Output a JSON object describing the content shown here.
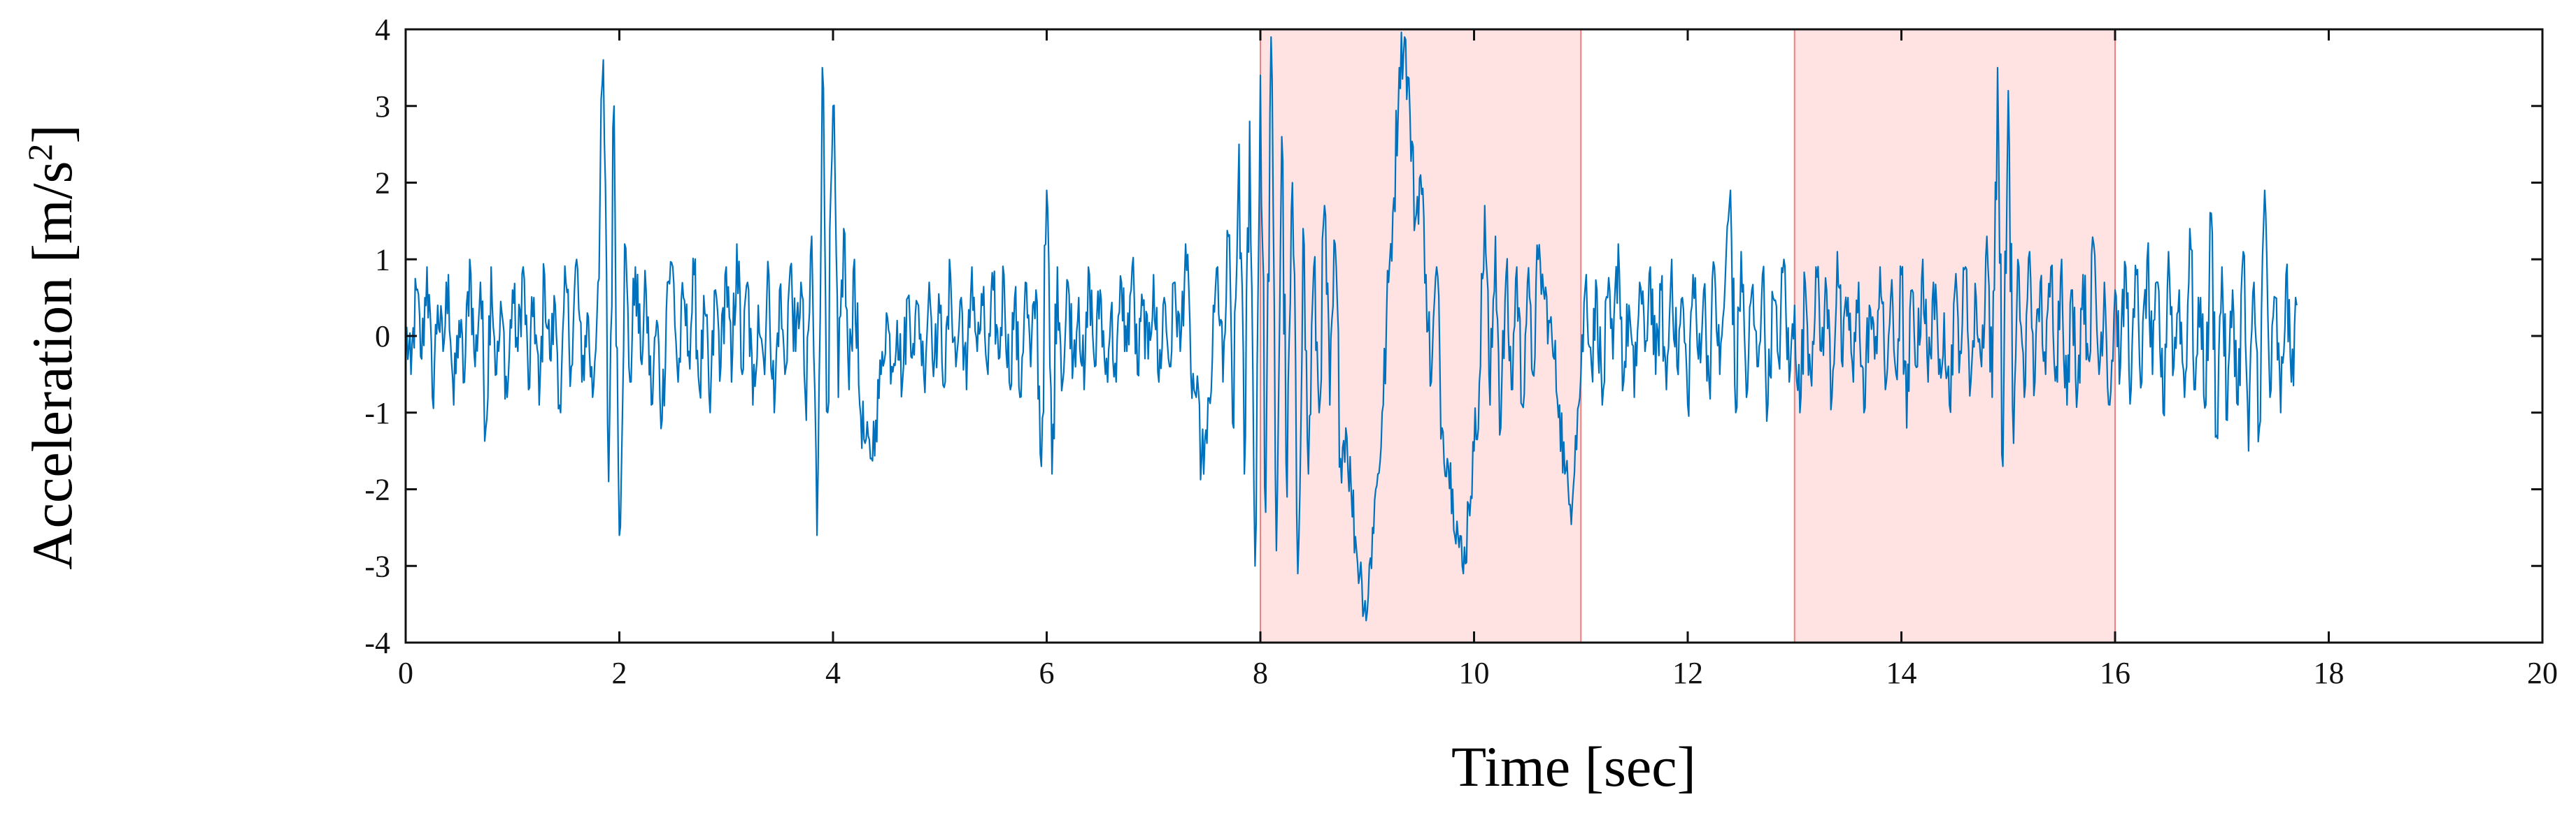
{
  "chart_data": {
    "type": "line",
    "title": "",
    "xlabel": "Time [sec]",
    "ylabel_main": "Acceleration [m/s",
    "ylabel_sup": "2",
    "ylabel_end": "]",
    "xlim": [
      0,
      20
    ],
    "ylim": [
      -4,
      4
    ],
    "xticks": [
      0,
      2,
      4,
      6,
      8,
      10,
      12,
      14,
      16,
      18,
      20
    ],
    "yticks": [
      -4,
      -3,
      -2,
      -1,
      0,
      1,
      2,
      3,
      4
    ],
    "grid": false,
    "legend": "none",
    "colors": {
      "series": "#0072BD",
      "highlight_fill": "#FFE3E3",
      "highlight_edge": "#F08080",
      "axis": "#111111"
    },
    "highlight_regions": [
      {
        "x_start": 8,
        "x_end": 11
      },
      {
        "x_start": 13,
        "x_end": 16
      }
    ],
    "series": [
      {
        "sample_step": 0.05,
        "x_start": 0,
        "values": [
          0.1,
          -0.5,
          0.6,
          -0.3,
          0.9,
          -0.8,
          0.4,
          -0.2,
          0.8,
          -0.9,
          0.2,
          -0.6,
          1.0,
          -0.4,
          0.7,
          -1.2,
          0.9,
          -0.5,
          0.3,
          -0.8,
          0.6,
          -0.2,
          0.9,
          -0.7,
          0.5,
          -0.9,
          0.8,
          -0.3,
          0.4,
          -1.0,
          0.7,
          -0.4,
          1.0,
          -0.6,
          0.3,
          -0.8,
          0.7,
          3.6,
          -1.9,
          3.0,
          -2.6,
          1.2,
          -0.6,
          0.9,
          -0.3,
          0.6,
          -0.9,
          0.2,
          -1.1,
          0.7,
          0.9,
          -0.6,
          0.5,
          -0.2,
          0.8,
          -0.7,
          0.3,
          -1.0,
          0.6,
          -0.4,
          0.9,
          -0.6,
          1.2,
          -0.5,
          0.7,
          -0.9,
          0.4,
          -0.3,
          0.8,
          -1.0,
          0.6,
          -0.5,
          0.9,
          -0.2,
          0.7,
          -1.1,
          1.3,
          -2.6,
          3.5,
          -1.0,
          3.0,
          -0.8,
          1.4,
          -0.7,
          1.0,
          -0.9,
          -1.4,
          -1.6,
          -1.1,
          -0.5,
          0.3,
          -0.4,
          0.2,
          -0.6,
          0.5,
          -0.1,
          0.4,
          -0.5,
          0.7,
          -0.3,
          0.3,
          -0.6,
          0.8,
          -0.4,
          0.5,
          -0.7,
          0.9,
          -0.2,
          0.4,
          -0.5,
          0.6,
          -0.3,
          0.8,
          -0.6,
          0.5,
          -0.8,
          0.7,
          -0.4,
          0.6,
          -1.7,
          1.9,
          -1.8,
          0.9,
          -0.6,
          0.7,
          -0.3,
          0.5,
          -0.7,
          0.8,
          -0.4,
          0.6,
          -0.5,
          0.3,
          -0.6,
          0.7,
          -0.2,
          0.9,
          -0.5,
          0.4,
          -0.3,
          0.8,
          -0.6,
          0.5,
          -0.4,
          0.7,
          -0.2,
          1.2,
          -0.5,
          -0.8,
          -1.6,
          -1.4,
          -0.3,
          0.9,
          -0.6,
          1.3,
          -1.2,
          2.5,
          -1.8,
          2.8,
          -3.0,
          3.4,
          -2.3,
          3.9,
          -2.8,
          2.6,
          -2.1,
          2.0,
          -3.1,
          1.4,
          -1.8,
          0.9,
          -1.0,
          1.7,
          -0.9,
          1.2,
          -1.6,
          -1.2,
          -2.0,
          -2.8,
          -3.2,
          -3.6,
          -2.5,
          -1.8,
          -0.9,
          0.7,
          1.8,
          3.5,
          3.9,
          2.9,
          1.5,
          2.1,
          0.8,
          -0.6,
          0.9,
          -1.2,
          -1.6,
          -2.0,
          -2.6,
          -3.1,
          -2.2,
          -1.5,
          -0.6,
          1.7,
          -0.9,
          1.3,
          -1.2,
          0.8,
          -0.7,
          0.9,
          -0.9,
          0.7,
          -0.5,
          1.0,
          0.6,
          0.2,
          -0.3,
          -0.9,
          -1.8,
          -2.2,
          -1.3,
          -0.5,
          0.8,
          -0.4,
          0.6,
          -0.9,
          0.5,
          -0.3,
          1.2,
          -0.6,
          0.4,
          -0.8,
          0.7,
          -0.2,
          0.9,
          -0.5,
          0.6,
          -0.7,
          1.0,
          -0.4,
          0.5,
          -0.9,
          0.8,
          -0.3,
          0.6,
          -0.6,
          0.9,
          -0.5,
          0.7,
          1.9,
          -1.0,
          1.1,
          -0.8,
          0.6,
          -0.4,
          0.8,
          -0.9,
          0.5,
          -0.3,
          1.0,
          -0.6,
          0.4,
          -1.0,
          0.7,
          -0.5,
          0.9,
          -0.2,
          0.6,
          -0.8,
          1.1,
          -0.4,
          0.5,
          -0.6,
          0.7,
          -1.0,
          0.4,
          -0.3,
          0.9,
          -0.7,
          0.5,
          -0.5,
          0.8,
          -1.2,
          0.6,
          -0.4,
          1.0,
          -0.6,
          0.7,
          -0.5,
          0.3,
          -0.9,
          0.6,
          -0.2,
          0.9,
          -0.6,
          0.5,
          -0.4,
          1.3,
          -0.8,
          3.5,
          -1.7,
          3.2,
          -1.4,
          0.9,
          -0.8,
          1.1,
          -0.6,
          0.7,
          -0.5,
          0.9,
          -0.4,
          1.0,
          -0.9,
          0.6,
          -0.7,
          0.8,
          -0.3,
          1.2,
          -0.5,
          0.7,
          -0.9,
          0.6,
          -0.4,
          0.9,
          -0.7,
          0.8,
          -0.6,
          1.0,
          -0.5,
          0.7,
          -1.0,
          1.1,
          -0.4,
          0.6,
          -0.8,
          1.4,
          -0.7,
          0.5,
          -0.9,
          1.6,
          -1.3,
          0.9,
          -1.1,
          0.6,
          -0.9,
          1.1,
          -1.5,
          0.7,
          -1.2,
          1.9,
          -0.8,
          0.5,
          -1.0,
          0.8,
          -0.6,
          0.4
        ]
      }
    ]
  }
}
